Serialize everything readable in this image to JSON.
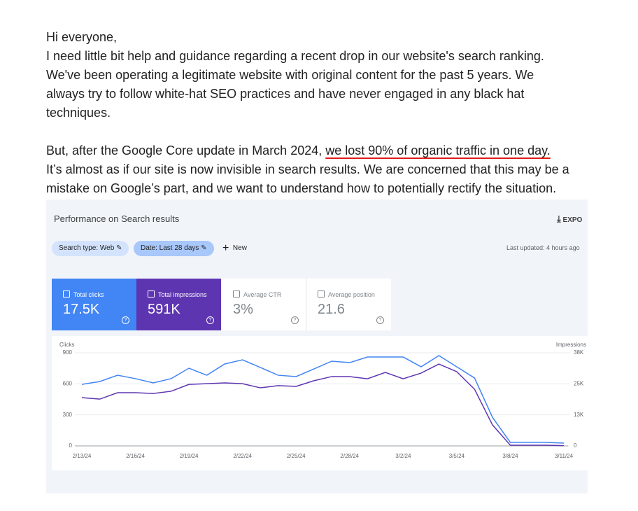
{
  "post": {
    "greeting": "Hi everyone,",
    "paragraph1": [
      "I need little bit help and guidance regarding a recent drop in our website's search ranking.",
      "We've been operating a legitimate website with original content for the past 5 years. We",
      "always try to follow white-hat SEO practices and have never engaged in any black hat",
      "techniques."
    ],
    "paragraph2_lead": "But, after the Google Core update in March 2024, ",
    "paragraph2_highlight": "we lost 90% of organic traffic in one day.",
    "paragraph2_rest": [
      "It’s almost as if our site is now invisible in search results. We are concerned that this may be a",
      "mistake on Google’s part, and we want to understand how to potentially rectify the situation."
    ]
  },
  "panel": {
    "title": "Performance on Search results",
    "export": "EXPO",
    "chips": [
      "Search type: Web",
      "Date: Last 28 days"
    ],
    "new": "New",
    "last_updated": "Last updated: 4 hours ago",
    "cards": [
      {
        "label": "Total clicks",
        "value": "17.5K"
      },
      {
        "label": "Total impressions",
        "value": "591K"
      },
      {
        "label": "Average CTR",
        "value": "3%"
      },
      {
        "label": "Average position",
        "value": "21.6"
      }
    ]
  },
  "chart_data": {
    "type": "line",
    "y_label": "Clicks",
    "y2_label": "Impressions",
    "categories": [
      "2/13/24",
      null,
      null,
      "2/16/24",
      null,
      null,
      "2/19/24",
      null,
      null,
      "2/22/24",
      null,
      null,
      "2/25/24",
      null,
      null,
      "2/28/24",
      null,
      null,
      "3/2/24",
      null,
      null,
      "3/5/24",
      null,
      null,
      "3/8/24",
      null,
      null,
      "3/11/24"
    ],
    "series": [
      {
        "color": "#4285f4",
        "axis": "y",
        "values": [
          595,
          622,
          683,
          650,
          609,
          650,
          751,
          683,
          792,
          832,
          758,
          683,
          670,
          744,
          819,
          805,
          859,
          859,
          859,
          765,
          873,
          765,
          656,
          277,
          34,
          34,
          34,
          27
        ]
      },
      {
        "color": "#5e35b1",
        "axis": "y2",
        "values": [
          19700,
          19100,
          21700,
          21700,
          21400,
          22300,
          25100,
          25400,
          25700,
          25400,
          23700,
          24600,
          24300,
          26600,
          28300,
          28300,
          27400,
          30000,
          27400,
          29700,
          33400,
          30300,
          23100,
          8600,
          300,
          300,
          300,
          100
        ]
      }
    ],
    "ylim": [
      0,
      900
    ],
    "yticks": [
      0,
      300,
      600,
      900
    ],
    "y2lim": [
      0,
      38000
    ],
    "y2ticks": [
      0,
      {
        "value": 12667,
        "label": "13K"
      },
      {
        "value": 25333,
        "label": "25K"
      },
      {
        "value": 38000,
        "label": "38K"
      }
    ],
    "grid": true
  }
}
